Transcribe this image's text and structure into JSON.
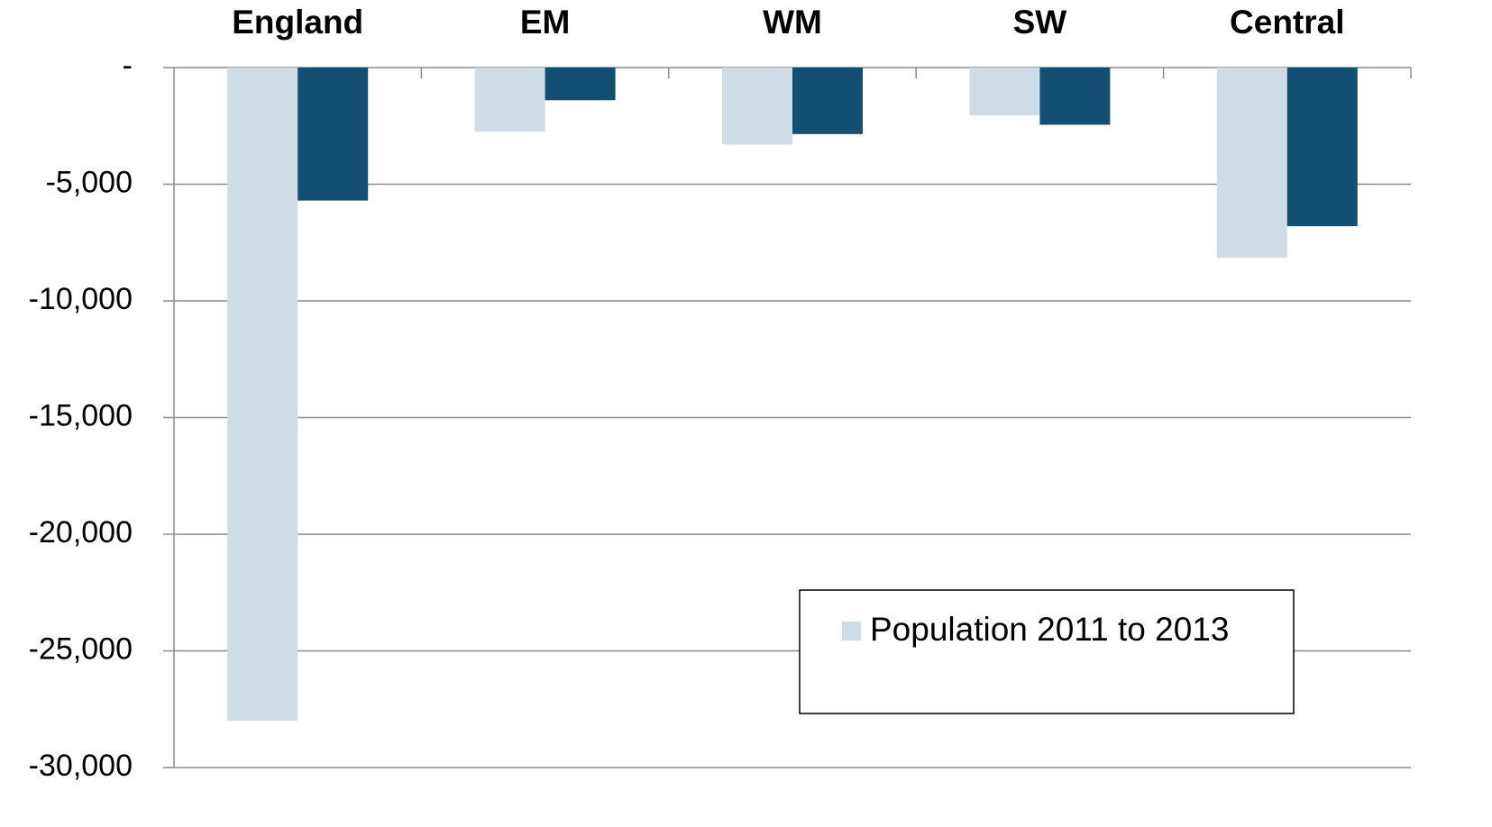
{
  "chart_data": {
    "type": "bar",
    "categories": [
      "England",
      "EM",
      "WM",
      "SW",
      "Central"
    ],
    "series": [
      {
        "name": "Population 2011 to 2013",
        "color": "#d0dce5",
        "values": [
          -28000,
          -2750,
          -3300,
          -2050,
          -8150
        ]
      },
      {
        "color": "#124f73",
        "values": [
          -5700,
          -1400,
          -2850,
          -2450,
          -6800
        ]
      }
    ],
    "ylim": [
      -30000,
      0
    ],
    "yticks": [
      {
        "value": 0,
        "label": "-"
      },
      {
        "value": -5000,
        "label": "-5,000"
      },
      {
        "value": -10000,
        "label": "-10,000"
      },
      {
        "value": -15000,
        "label": "-15,000"
      },
      {
        "value": -20000,
        "label": "-20,000"
      },
      {
        "value": -25000,
        "label": "-25,000"
      },
      {
        "value": -30000,
        "label": "-30,000"
      }
    ],
    "grid": true
  }
}
